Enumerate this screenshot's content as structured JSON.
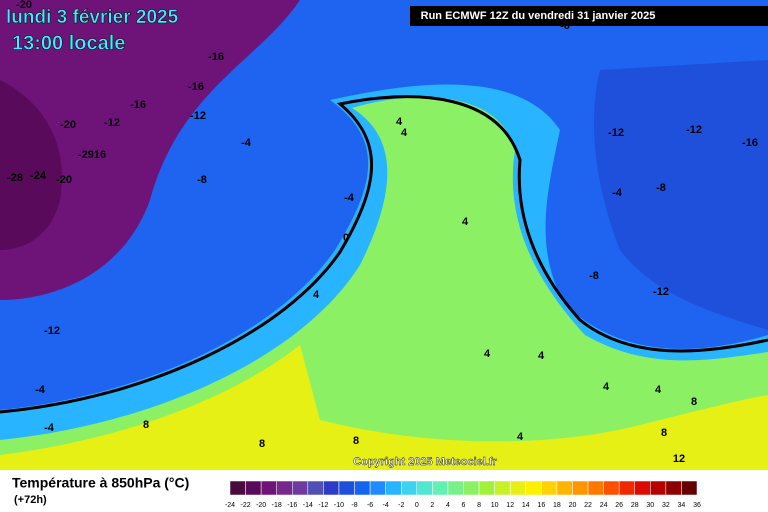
{
  "header": {
    "date": "lundi 3 février 2025",
    "time": "13:00 locale"
  },
  "run": "Run ECMWF 12Z du vendredi 31 janvier 2025",
  "copyright": "Copyright 2025 Meteociel.fr",
  "legend": {
    "title": "Température à 850hPa (°C)",
    "subtitle": "(+72h)",
    "ticks": [
      -24,
      -22,
      -20,
      -18,
      -16,
      -14,
      -12,
      -10,
      -8,
      -6,
      -4,
      -2,
      0,
      2,
      4,
      6,
      8,
      10,
      12,
      14,
      16,
      18,
      20,
      22,
      24,
      26,
      28,
      30,
      32,
      34,
      36
    ],
    "colors": [
      "#4b0a3c",
      "#5a0a5a",
      "#6e1478",
      "#78288c",
      "#6e3ca0",
      "#5050b4",
      "#2d3cc8",
      "#1e50dc",
      "#1464f0",
      "#1e8cff",
      "#28b4ff",
      "#3cd2f0",
      "#50e6d2",
      "#64f0b4",
      "#78f08c",
      "#8cf064",
      "#a0f03c",
      "#c8f028",
      "#e6f014",
      "#fff000",
      "#ffd200",
      "#ffb400",
      "#ff9600",
      "#ff7800",
      "#ff5000",
      "#f02800",
      "#dc0a00",
      "#b40000",
      "#8c0000",
      "#640000"
    ]
  },
  "map": {
    "labels": [
      "-20",
      "-16",
      "-16",
      "-16",
      "-12",
      "-20",
      "-12",
      "-2916",
      "-28",
      "-24",
      "-20",
      "-4",
      "-8",
      "-4",
      "0",
      "4",
      "-12",
      "-4",
      "-4",
      "8",
      "8",
      "8",
      "4",
      "4",
      "4",
      "4",
      "4",
      "4",
      "4",
      "4",
      "-12",
      "-12",
      "-16",
      "-8",
      "-4",
      "-8",
      "-12",
      "8",
      "8",
      "12",
      "-6"
    ]
  }
}
